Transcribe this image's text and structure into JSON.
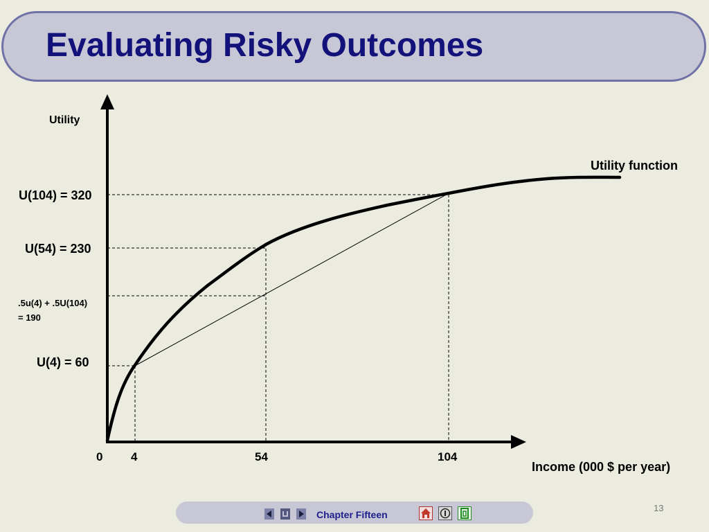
{
  "title": "Evaluating Risky Outcomes",
  "chart_data": {
    "type": "line",
    "ylabel": "Utility",
    "xlabel": "Income (000 $ per year)",
    "series_label": "Utility function",
    "x_ticks": [
      "0",
      "4",
      "54",
      "104"
    ],
    "y_ticks": [
      {
        "value": 60,
        "label": "U(4) = 60"
      },
      {
        "value": 190,
        "label": ".5u(4) + .5U(104) = 190",
        "label_lines": [
          ".5u(4) + .5U(104)",
          "= 190"
        ]
      },
      {
        "value": 230,
        "label": "U(54) = 230"
      },
      {
        "value": 320,
        "label": "U(104) = 320"
      }
    ],
    "points": [
      {
        "income": 0,
        "utility": 0
      },
      {
        "income": 4,
        "utility": 60
      },
      {
        "income": 54,
        "utility": 230
      },
      {
        "income": 104,
        "utility": 320
      }
    ],
    "chord": {
      "from_income": 4,
      "to_income": 104,
      "midpoint_income": 54,
      "midpoint_utility": 190
    },
    "grid": false
  },
  "footer": {
    "chapter": "Chapter Fifteen",
    "page": "13"
  }
}
